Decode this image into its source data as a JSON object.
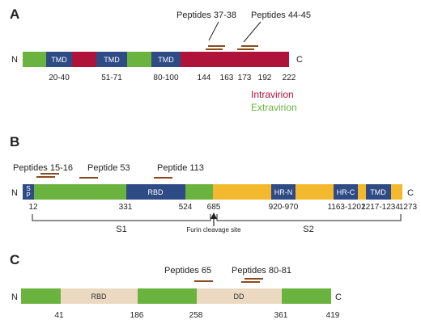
{
  "panel_a": {
    "letter": "A",
    "n": "N",
    "c": "C",
    "tmd1": "TMD",
    "tmd2": "TMD",
    "tmd3": "TMD",
    "pos1": "20-40",
    "pos2": "51-71",
    "pos3": "80-100",
    "pos4": "144",
    "pos5": "163",
    "pos6": "173",
    "pos7": "192",
    "pos8": "222",
    "pep_a": "Peptides 37-38",
    "pep_b": "Peptides 44-45",
    "legend_intra": "Intravirion",
    "legend_extra": "Extravirion"
  },
  "panel_b": {
    "letter": "B",
    "n": "N",
    "c": "C",
    "sp_s": "S",
    "sp_p": "P",
    "rbd": "RBD",
    "hrn": "HR-N",
    "hrc": "HR-C",
    "tmd": "TMD",
    "pos1": "12",
    "pos2": "331",
    "pos3": "524",
    "pos4": "685",
    "pos5": "920-970",
    "pos6": "1163-1202",
    "pos7": "1217-1234",
    "pos8": "1273",
    "pep_a": "Peptides 15-16",
    "pep_b": "Peptide 53",
    "pep_c": "Peptide 113",
    "s1": "S1",
    "s2": "S2",
    "furin": "Furin cleavage site"
  },
  "panel_c": {
    "letter": "C",
    "n": "N",
    "c": "C",
    "rbd": "RBD",
    "dd": "DD",
    "pos1": "41",
    "pos2": "186",
    "pos3": "258",
    "pos4": "361",
    "pos5": "419",
    "pep_a": "Peptides 65",
    "pep_b": "Peptides 80-81"
  },
  "colors": {
    "green": "#6ab33e",
    "crimson": "#b0133a",
    "navy": "#2e4b86",
    "gold": "#f2b92e",
    "tan": "#ecd9c2",
    "peptide": "#8b4a1e"
  }
}
